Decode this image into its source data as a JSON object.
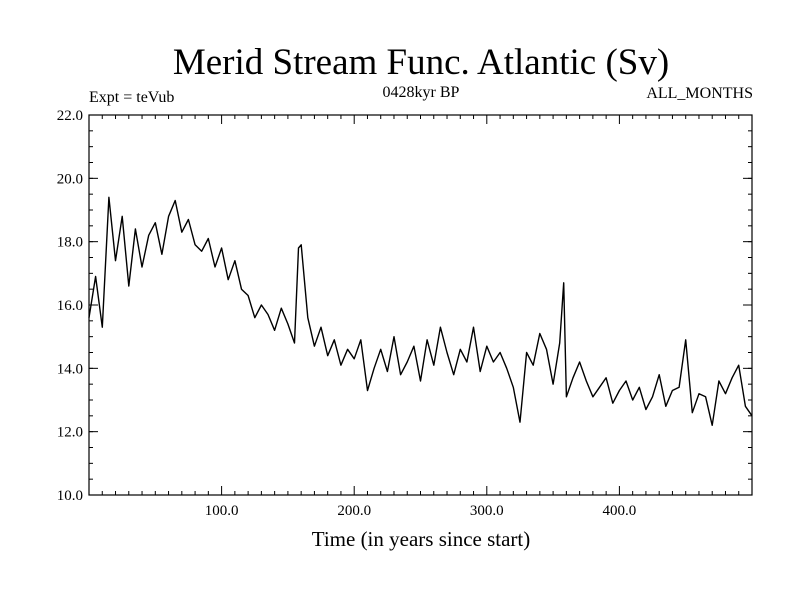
{
  "chart_data": {
    "type": "line",
    "title": "Merid Stream Func. Atlantic (Sv)",
    "subtitle_left": "Expt = teVub",
    "subtitle_center": "0428kyr BP",
    "subtitle_right": "ALL_MONTHS",
    "xlabel": "Time (in years since start)",
    "ylabel": "",
    "xlim": [
      0,
      500
    ],
    "ylim": [
      10,
      22
    ],
    "x_ticks": [
      100,
      200,
      300,
      400
    ],
    "x_tick_labels": [
      "100.0",
      "200.0",
      "300.0",
      "400.0"
    ],
    "y_ticks": [
      10,
      12,
      14,
      16,
      18,
      20,
      22
    ],
    "y_tick_labels": [
      "10.0",
      "12.0",
      "14.0",
      "16.0",
      "18.0",
      "20.0",
      "22.0"
    ],
    "grid": false,
    "series": [
      {
        "color": "#000000",
        "x": [
          0,
          5,
          10,
          15,
          20,
          25,
          30,
          35,
          40,
          45,
          50,
          55,
          60,
          65,
          70,
          75,
          80,
          85,
          90,
          95,
          100,
          105,
          110,
          115,
          120,
          125,
          130,
          135,
          140,
          145,
          150,
          155,
          158,
          160,
          165,
          170,
          175,
          180,
          185,
          190,
          195,
          200,
          205,
          210,
          215,
          220,
          225,
          230,
          235,
          240,
          245,
          250,
          255,
          260,
          265,
          270,
          275,
          280,
          285,
          290,
          295,
          300,
          305,
          310,
          315,
          320,
          325,
          330,
          335,
          340,
          345,
          350,
          355,
          358,
          360,
          365,
          370,
          375,
          380,
          385,
          390,
          395,
          400,
          405,
          410,
          415,
          420,
          425,
          430,
          435,
          440,
          445,
          450,
          455,
          460,
          465,
          470,
          475,
          480,
          485,
          490,
          495,
          500
        ],
        "y": [
          15.6,
          16.9,
          15.3,
          19.4,
          17.4,
          18.8,
          16.6,
          18.4,
          17.2,
          18.2,
          18.6,
          17.6,
          18.8,
          19.3,
          18.3,
          18.7,
          17.9,
          17.7,
          18.1,
          17.2,
          17.8,
          16.8,
          17.4,
          16.5,
          16.3,
          15.6,
          16.0,
          15.7,
          15.2,
          15.9,
          15.4,
          14.8,
          17.8,
          17.9,
          15.6,
          14.7,
          15.3,
          14.4,
          14.9,
          14.1,
          14.6,
          14.3,
          14.9,
          13.3,
          14.0,
          14.6,
          13.9,
          15.0,
          13.8,
          14.2,
          14.7,
          13.6,
          14.9,
          14.1,
          15.3,
          14.5,
          13.8,
          14.6,
          14.2,
          15.3,
          13.9,
          14.7,
          14.2,
          14.5,
          14.0,
          13.4,
          12.3,
          14.5,
          14.1,
          15.1,
          14.6,
          13.5,
          14.8,
          16.7,
          13.1,
          13.7,
          14.2,
          13.6,
          13.1,
          13.4,
          13.7,
          12.9,
          13.3,
          13.6,
          13.0,
          13.4,
          12.7,
          13.1,
          13.8,
          12.8,
          13.3,
          13.4,
          14.9,
          12.6,
          13.2,
          13.1,
          12.2,
          13.6,
          13.2,
          13.7,
          14.1,
          12.8,
          12.5
        ]
      }
    ]
  }
}
